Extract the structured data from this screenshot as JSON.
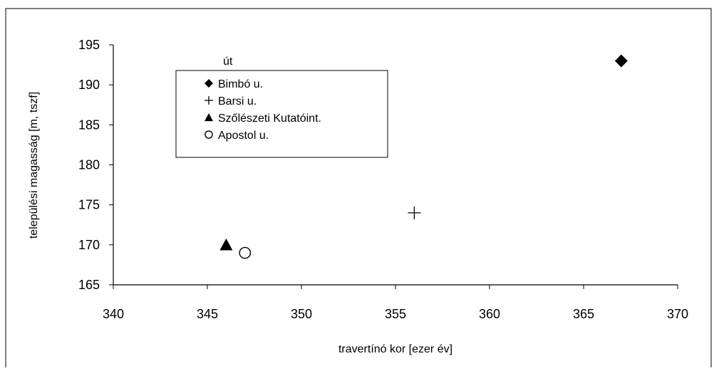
{
  "chart_data": {
    "type": "scatter",
    "title": "",
    "xlabel": "travertínó kor [ezer év]",
    "ylabel": "települési magasság [m, tszf]",
    "xlim": [
      340,
      370
    ],
    "ylim": [
      165,
      195
    ],
    "xticks": [
      340,
      345,
      350,
      355,
      360,
      365,
      370
    ],
    "yticks": [
      165,
      170,
      175,
      180,
      185,
      190,
      195
    ],
    "grid": false,
    "legend_position": "top-left",
    "legend_title": "út",
    "series": [
      {
        "name": "Bimbó u.",
        "marker": "diamond",
        "points": [
          {
            "x": 367,
            "y": 193
          }
        ]
      },
      {
        "name": "Barsi u.",
        "marker": "plus",
        "points": [
          {
            "x": 356,
            "y": 174
          }
        ]
      },
      {
        "name": "Szőlészeti Kutatóint.",
        "marker": "triangle",
        "points": [
          {
            "x": 346,
            "y": 170
          }
        ]
      },
      {
        "name": "Apostol u.",
        "marker": "circle-open",
        "points": [
          {
            "x": 347,
            "y": 169
          }
        ]
      }
    ]
  }
}
